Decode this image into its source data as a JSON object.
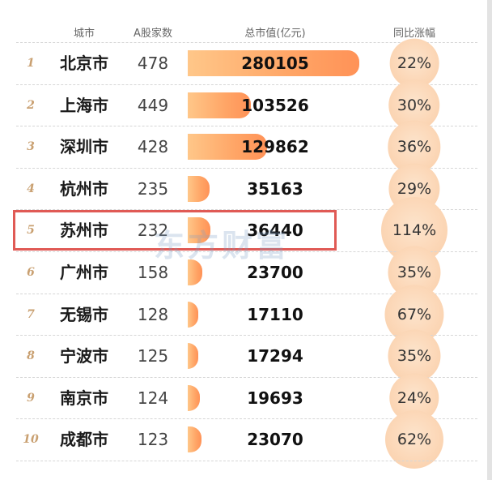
{
  "chart_data": {
    "type": "table",
    "columns": [
      "城市",
      "A股家数",
      "总市值(亿元)",
      "同比涨幅"
    ],
    "rows": [
      {
        "rank": "1",
        "city": "北京市",
        "count": "478",
        "cap": "280105",
        "cap_value": 280105,
        "pct": "22%",
        "pct_value": 22
      },
      {
        "rank": "2",
        "city": "上海市",
        "count": "449",
        "cap": "103526",
        "cap_value": 103526,
        "pct": "30%",
        "pct_value": 30
      },
      {
        "rank": "3",
        "city": "深圳市",
        "count": "428",
        "cap": "129862",
        "cap_value": 129862,
        "pct": "36%",
        "pct_value": 36
      },
      {
        "rank": "4",
        "city": "杭州市",
        "count": "235",
        "cap": "35163",
        "cap_value": 35163,
        "pct": "29%",
        "pct_value": 29
      },
      {
        "rank": "5",
        "city": "苏州市",
        "count": "232",
        "cap": "36440",
        "cap_value": 36440,
        "pct": "114%",
        "pct_value": 114,
        "highlighted": true
      },
      {
        "rank": "6",
        "city": "广州市",
        "count": "158",
        "cap": "23700",
        "cap_value": 23700,
        "pct": "35%",
        "pct_value": 35
      },
      {
        "rank": "7",
        "city": "无锡市",
        "count": "128",
        "cap": "17110",
        "cap_value": 17110,
        "pct": "67%",
        "pct_value": 67
      },
      {
        "rank": "8",
        "city": "宁波市",
        "count": "125",
        "cap": "17294",
        "cap_value": 17294,
        "pct": "35%",
        "pct_value": 35
      },
      {
        "rank": "9",
        "city": "南京市",
        "count": "124",
        "cap": "19693",
        "cap_value": 19693,
        "pct": "24%",
        "pct_value": 24
      },
      {
        "rank": "10",
        "city": "成都市",
        "count": "123",
        "cap": "23070",
        "cap_value": 23070,
        "pct": "62%",
        "pct_value": 62
      }
    ],
    "cap_max": 280105,
    "pct_max": 114
  },
  "watermark": "东方财富",
  "colors": {
    "bar_start": "#ffc789",
    "bar_end": "#ff9257",
    "bubble": "#fbd4b2",
    "rank": "#c9a071",
    "highlight_border": "#e05a55"
  }
}
